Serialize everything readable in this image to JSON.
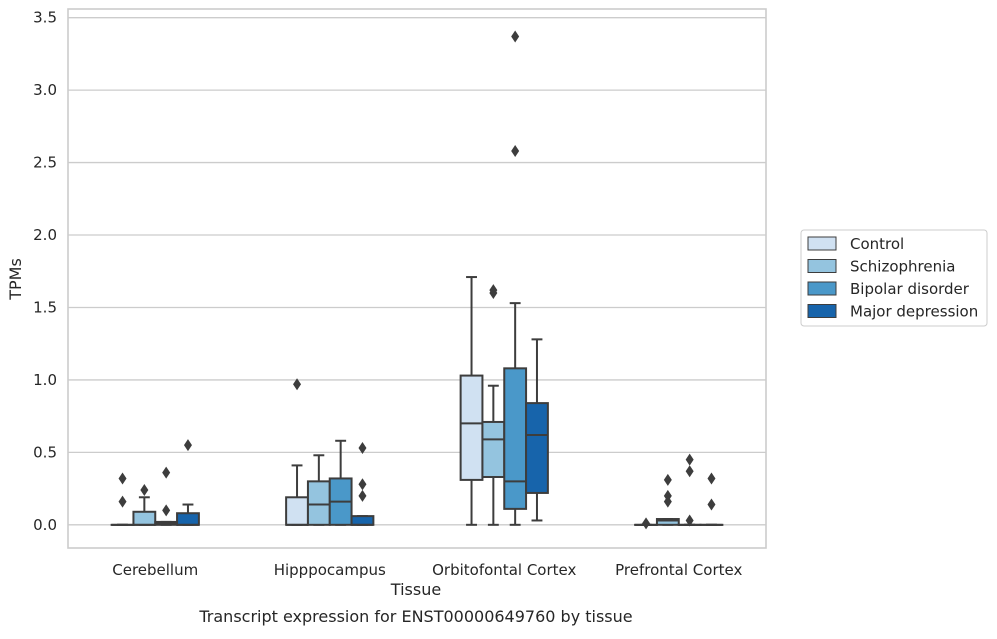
{
  "chart_data": {
    "type": "box",
    "caption": "Transcript expression for ENST00000649760 by tissue",
    "xlabel": "Tissue",
    "ylabel": "TPMs",
    "ylim": [
      -0.16,
      3.56
    ],
    "yticks": [
      0.0,
      0.5,
      1.0,
      1.5,
      2.0,
      2.5,
      3.0,
      3.5
    ],
    "ytick_labels": [
      "0.0",
      "0.5",
      "1.0",
      "1.5",
      "2.0",
      "2.5",
      "3.0",
      "3.5"
    ],
    "grid": "horizontal",
    "legend_position": "right",
    "categories": [
      "Cerebellum",
      "Hipppocampus",
      "Orbitofontal Cortex",
      "Prefrontal Cortex"
    ],
    "series": [
      {
        "name": "Control",
        "color": "#d0e1f2",
        "boxes": [
          {
            "q1": 0.0,
            "median": 0.0,
            "q3": 0.0,
            "whisker_low": 0.0,
            "whisker_high": 0.0,
            "outliers": [
              0.32,
              0.16
            ]
          },
          {
            "q1": 0.0,
            "median": 0.0,
            "q3": 0.19,
            "whisker_low": 0.0,
            "whisker_high": 0.41,
            "outliers": [
              0.97
            ]
          },
          {
            "q1": 0.31,
            "median": 0.7,
            "q3": 1.03,
            "whisker_low": 0.0,
            "whisker_high": 1.71,
            "outliers": []
          },
          {
            "q1": 0.0,
            "median": 0.0,
            "q3": 0.0,
            "whisker_low": 0.0,
            "whisker_high": 0.0,
            "outliers": [
              0.01
            ]
          }
        ]
      },
      {
        "name": "Schizophrenia",
        "color": "#94c4df",
        "boxes": [
          {
            "q1": 0.0,
            "median": 0.0,
            "q3": 0.09,
            "whisker_low": 0.0,
            "whisker_high": 0.19,
            "outliers": [
              0.24
            ]
          },
          {
            "q1": 0.0,
            "median": 0.14,
            "q3": 0.3,
            "whisker_low": 0.0,
            "whisker_high": 0.48,
            "outliers": []
          },
          {
            "q1": 0.33,
            "median": 0.59,
            "q3": 0.71,
            "whisker_low": 0.0,
            "whisker_high": 0.96,
            "outliers": [
              1.6,
              1.62
            ]
          },
          {
            "q1": 0.0,
            "median": 0.03,
            "q3": 0.04,
            "whisker_low": 0.0,
            "whisker_high": 0.04,
            "outliers": [
              0.31,
              0.2,
              0.16
            ]
          }
        ]
      },
      {
        "name": "Bipolar disorder",
        "color": "#4a98c9",
        "boxes": [
          {
            "q1": 0.0,
            "median": 0.01,
            "q3": 0.02,
            "whisker_low": 0.0,
            "whisker_high": 0.02,
            "outliers": [
              0.36,
              0.1
            ]
          },
          {
            "q1": 0.0,
            "median": 0.16,
            "q3": 0.32,
            "whisker_low": 0.0,
            "whisker_high": 0.58,
            "outliers": []
          },
          {
            "q1": 0.11,
            "median": 0.3,
            "q3": 1.08,
            "whisker_low": 0.0,
            "whisker_high": 1.53,
            "outliers": [
              3.37,
              2.58
            ]
          },
          {
            "q1": 0.0,
            "median": 0.0,
            "q3": 0.0,
            "whisker_low": 0.0,
            "whisker_high": 0.0,
            "outliers": [
              0.45,
              0.37,
              0.03
            ]
          }
        ]
      },
      {
        "name": "Major depression",
        "color": "#1764ab",
        "boxes": [
          {
            "q1": 0.0,
            "median": 0.0,
            "q3": 0.08,
            "whisker_low": 0.0,
            "whisker_high": 0.14,
            "outliers": [
              0.55
            ]
          },
          {
            "q1": 0.0,
            "median": 0.0,
            "q3": 0.06,
            "whisker_low": 0.0,
            "whisker_high": 0.06,
            "outliers": [
              0.53,
              0.28,
              0.2
            ]
          },
          {
            "q1": 0.22,
            "median": 0.62,
            "q3": 0.84,
            "whisker_low": 0.03,
            "whisker_high": 1.28,
            "outliers": []
          },
          {
            "q1": 0.0,
            "median": 0.0,
            "q3": 0.0,
            "whisker_low": 0.0,
            "whisker_high": 0.0,
            "outliers": [
              0.32,
              0.14
            ]
          }
        ]
      }
    ]
  }
}
